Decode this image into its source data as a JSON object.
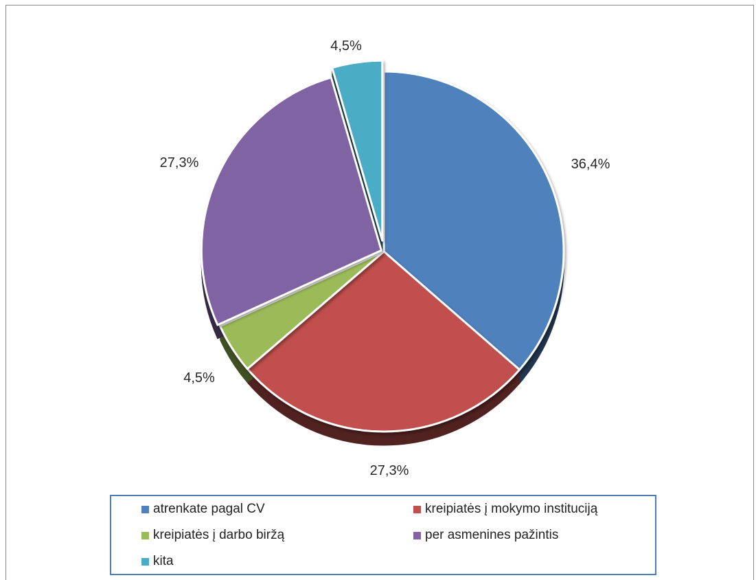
{
  "chart_data": {
    "type": "pie",
    "style": "3d-exploded",
    "start_angle": "12 o'clock, clockwise",
    "slices": [
      {
        "label": "atrenkate pagal CV",
        "value": 36.4,
        "value_label": "36,4%",
        "color": "#4f81bd"
      },
      {
        "label": "kreipiatės į mokymo instituciją",
        "value": 27.3,
        "value_label": "27,3%",
        "color": "#c0504d"
      },
      {
        "label": "kreipiatės į darbo biržą",
        "value": 4.5,
        "value_label": "4,5%",
        "color": "#9bbb59"
      },
      {
        "label": "per asmenines pažintis",
        "value": 27.3,
        "value_label": "27,3%",
        "color": "#8064a2"
      },
      {
        "label": "kita",
        "value": 4.5,
        "value_label": "4,5%",
        "color": "#4bacc6"
      }
    ],
    "legend": {
      "placement": "bottom",
      "entries": [
        "atrenkate pagal CV",
        "kreipiatės į mokymo instituciją",
        "kreipiatės į darbo biržą",
        "per asmenines pažintis",
        "kita"
      ]
    },
    "title": "",
    "grid": false
  }
}
